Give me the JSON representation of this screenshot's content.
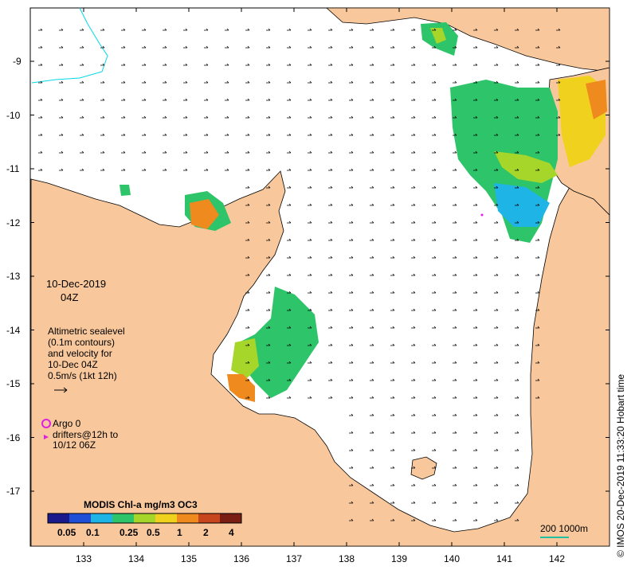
{
  "map": {
    "date_label": "10-Dec-2019",
    "time_label": "04Z",
    "legend_lines": [
      "Altimetric sealevel",
      "(0.1m contours)",
      "and velocity for",
      "10-Dec 04Z",
      "0.5m/s (1kt 12h)"
    ],
    "argo_label": "Argo 0",
    "drifter_line1": "drifters@12h to",
    "drifter_line2": "10/12 06Z",
    "colorbar": {
      "title": "MODIS Chl-a mg/m3 OC3",
      "ticks": [
        "0.05",
        "0.1",
        "0.25",
        "0.5",
        "1",
        "2",
        "4"
      ],
      "colors": [
        "#1a1a8c",
        "#1f4fd6",
        "#1fb4e6",
        "#2ec46a",
        "#a6d62a",
        "#f0d21e",
        "#ef8a1e",
        "#c8461e",
        "#7a1e14"
      ]
    },
    "scale_label": "200  1000m",
    "credit": "© IMOS 20-Dec-2019 11:33:20 Hobart time",
    "lat_ticks": [
      "-9",
      "-10",
      "-11",
      "-12",
      "-13",
      "-14",
      "-15",
      "-16",
      "-17"
    ],
    "lon_ticks": [
      "133",
      "134",
      "135",
      "136",
      "137",
      "138",
      "139",
      "140",
      "141",
      "142"
    ],
    "colors": {
      "land": "#f8c89c",
      "sea": "#ffffff",
      "argo_marker": "#e020e0",
      "scale_bar": "#20c0a0",
      "contour": "#00d8e8"
    }
  }
}
